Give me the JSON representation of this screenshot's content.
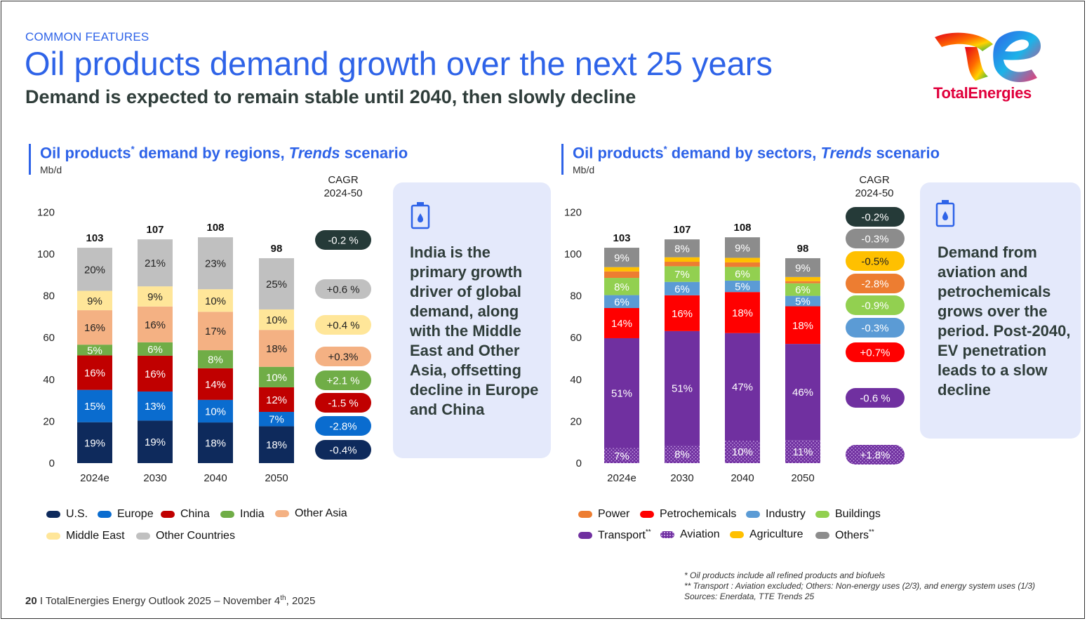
{
  "header": {
    "kicker": "COMMON FEATURES",
    "title": "Oil products demand growth over the next 25 years",
    "subtitle": "Demand is expected to remain stable until 2040, then slowly decline",
    "logo_text": "TotalEnergies"
  },
  "colors": {
    "accent": "#2e63e8",
    "us": "#0e2a5c",
    "europe": "#0a6ccf",
    "china": "#c00000",
    "india": "#70ad47",
    "other_asia": "#f4b183",
    "middle_east": "#ffe699",
    "other_countries": "#c0c0c0",
    "power": "#ed7d31",
    "petrochemicals": "#ff0000",
    "industry": "#5b9bd5",
    "buildings": "#92d050",
    "transport": "#7030a0",
    "aviation": "#7030a0",
    "agriculture": "#ffc000",
    "others": "#8c8c8c"
  },
  "chart_data": [
    {
      "type": "bar",
      "stacked": true,
      "title": "Oil products* demand by regions, Trends scenario",
      "title_main": "Oil products",
      "title_star": "*",
      "title_mid": " demand by regions, ",
      "title_italic": "Trends",
      "title_end": " scenario",
      "ylabel": "Mb/d",
      "ylim": [
        0,
        120
      ],
      "yticks": [
        0,
        20,
        40,
        60,
        80,
        100,
        120
      ],
      "categories": [
        "2024e",
        "2030",
        "2040",
        "2050"
      ],
      "totals": [
        103,
        107,
        108,
        98
      ],
      "cagr_header": [
        "CAGR",
        "2024-50"
      ],
      "series": [
        {
          "name": "U.S.",
          "key": "us",
          "shares": [
            19,
            19,
            18,
            18
          ],
          "labels": [
            "19%",
            "19%",
            "18%",
            "18%"
          ],
          "cagr": "-0.4%"
        },
        {
          "name": "Europe",
          "key": "europe",
          "shares": [
            15,
            13,
            10,
            7
          ],
          "labels": [
            "15%",
            "13%",
            "10%",
            "7%"
          ],
          "cagr": "-2.8%"
        },
        {
          "name": "China",
          "key": "china",
          "shares": [
            16,
            16,
            14,
            12
          ],
          "labels": [
            "16%",
            "16%",
            "14%",
            "12%"
          ],
          "cagr": "-1.5 %"
        },
        {
          "name": "India",
          "key": "india",
          "shares": [
            5,
            6,
            8,
            10
          ],
          "labels": [
            "5%",
            "6%",
            "8%",
            "10%"
          ],
          "cagr": "+2.1 %"
        },
        {
          "name": "Other Asia",
          "key": "other_asia",
          "shares": [
            16,
            16,
            17,
            18
          ],
          "labels": [
            "16%",
            "16%",
            "17%",
            "18%"
          ],
          "cagr": "+0.3%"
        },
        {
          "name": "Middle East",
          "key": "middle_east",
          "shares": [
            9,
            9,
            10,
            10
          ],
          "labels": [
            "9%",
            "9%",
            "10%",
            "10%"
          ],
          "cagr": "+0.4 %"
        },
        {
          "name": "Other Countries",
          "key": "other_countries",
          "shares": [
            20,
            21,
            23,
            25
          ],
          "labels": [
            "20%",
            "21%",
            "23%",
            "25%"
          ],
          "cagr": "+0.6 %"
        }
      ],
      "total_cagr": "-0.2 %"
    },
    {
      "type": "bar",
      "stacked": true,
      "title": "Oil products* demand by sectors, Trends scenario",
      "title_main": "Oil products",
      "title_star": "*",
      "title_mid": " demand by sectors, ",
      "title_italic": "Trends",
      "title_end": " scenario",
      "ylabel": "Mb/d",
      "ylim": [
        0,
        120
      ],
      "yticks": [
        0,
        20,
        40,
        60,
        80,
        100,
        120
      ],
      "categories": [
        "2024e",
        "2030",
        "2040",
        "2050"
      ],
      "totals": [
        103,
        107,
        108,
        98
      ],
      "cagr_header": [
        "CAGR",
        "2024-50"
      ],
      "series": [
        {
          "name": "Aviation",
          "key": "aviation",
          "shares": [
            7,
            8,
            10,
            11
          ],
          "labels": [
            "7%",
            "8%",
            "10%",
            "11%"
          ],
          "cagr": "+1.8%"
        },
        {
          "name": "Transport**",
          "key": "transport",
          "shares": [
            51,
            51,
            47,
            46
          ],
          "labels": [
            "51%",
            "51%",
            "47%",
            "46%"
          ],
          "cagr": "-0.6 %"
        },
        {
          "name": "Petrochemicals",
          "key": "petrochemicals",
          "shares": [
            14,
            16,
            18,
            18
          ],
          "labels": [
            "14%",
            "16%",
            "18%",
            "18%"
          ],
          "cagr": "+0.7%"
        },
        {
          "name": "Industry",
          "key": "industry",
          "shares": [
            6,
            6,
            5,
            5
          ],
          "labels": [
            "6%",
            "6%",
            "5%",
            "5%"
          ],
          "cagr": "-0.3%"
        },
        {
          "name": "Buildings",
          "key": "buildings",
          "shares": [
            8,
            7,
            6,
            6
          ],
          "labels": [
            "8%",
            "7%",
            "6%",
            "6%"
          ],
          "cagr": "-0.9%"
        },
        {
          "name": "Power",
          "key": "power",
          "shares": [
            3,
            2,
            2,
            1
          ],
          "labels": [
            "",
            "",
            "",
            ""
          ],
          "cagr": "-2.8%"
        },
        {
          "name": "Agriculture",
          "key": "agriculture",
          "shares": [
            2,
            2,
            2,
            2
          ],
          "labels": [
            "",
            "",
            "",
            ""
          ],
          "cagr": "-0.5%"
        },
        {
          "name": "Others**",
          "key": "others",
          "shares": [
            9,
            8,
            9,
            9
          ],
          "labels": [
            "9%",
            "8%",
            "9%",
            "9%"
          ],
          "cagr": "-0.3%"
        }
      ],
      "total_cagr": "-0.2%"
    }
  ],
  "legends": {
    "regions_row1": [
      "U.S.",
      "Europe",
      "China",
      "India",
      "Other Asia"
    ],
    "regions_row2": [
      "Middle East",
      "Other Countries"
    ],
    "sectors_row1": [
      "Power",
      "Petrochemicals",
      "Industry",
      "Buildings"
    ],
    "sectors_row2": [
      "Transport",
      "Aviation",
      "Agriculture",
      "Others"
    ],
    "sectors_row2_sup": "**"
  },
  "callouts": {
    "left": "India is the primary growth driver of global demand, along with the Middle East and Other Asia, offsetting decline in Europe and China",
    "right": "Demand from aviation and petrochemicals grows over the period. Post-2040, EV penetration leads to a slow decline",
    "icon": "oil-can-icon"
  },
  "footnotes": [
    "* Oil products include all refined products and biofuels",
    "** Transport : Aviation excluded; Others: Non-energy uses (2/3), and energy system uses (1/3)",
    "Sources: Enerdata, TTE Trends 25"
  ],
  "footer": {
    "page": "20",
    "text": " I TotalEnergies Energy Outlook 2025 – November 4",
    "sup": "th",
    "year": ", 2025"
  }
}
